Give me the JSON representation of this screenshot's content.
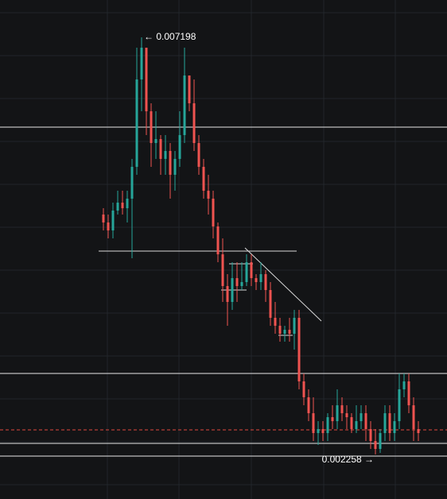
{
  "chart_data": {
    "type": "candlestick",
    "open": [
      0.005099,
      0.005005,
      0.004911,
      0.005146,
      0.00524,
      0.005174,
      0.005287,
      0.005664,
      0.006699,
      0.007075,
      0.006322,
      0.005946,
      0.005993,
      0.005758,
      0.005852,
      0.00557,
      0.005758,
      0.00604,
      0.006746,
      0.006417,
      0.005946,
      0.005664,
      0.005381,
      0.005287,
      0.004958,
      0.004628,
      0.004252,
      0.004064,
      0.004346,
      0.004252,
      0.004299,
      0.004534,
      0.004346,
      0.004299,
      0.004393,
      0.004205,
      0.003876,
      0.003782,
      0.003687,
      0.003734,
      0.003687,
      0.003876,
      0.003123,
      0.002935,
      0.002746,
      0.002511,
      0.002558,
      0.002511,
      0.002699,
      0.002652,
      0.00284,
      0.002746,
      0.002699,
      0.002558,
      0.002652,
      0.002746,
      0.002558,
      0.002417,
      0.002323,
      0.002511,
      0.002746,
      0.002511,
      0.002652,
      0.003029,
      0.003123,
      0.00284,
      0.002558
    ],
    "high": [
      0.005174,
      0.005099,
      0.00524,
      0.005381,
      0.005381,
      0.005381,
      0.005758,
      0.007075,
      0.007198,
      0.007075,
      0.006417,
      0.006322,
      0.00604,
      0.00604,
      0.005946,
      0.005852,
      0.006322,
      0.007075,
      0.006746,
      0.006699,
      0.00604,
      0.005758,
      0.00557,
      0.005381,
      0.005005,
      0.004817,
      0.004393,
      0.004534,
      0.004534,
      0.004534,
      0.004628,
      0.004628,
      0.004393,
      0.004534,
      0.00444,
      0.004299,
      0.004064,
      0.003876,
      0.003782,
      0.003876,
      0.00397,
      0.00397,
      0.003217,
      0.003029,
      0.002935,
      0.002652,
      0.002652,
      0.002746,
      0.00284,
      0.003029,
      0.002935,
      0.00284,
      0.002746,
      0.00284,
      0.00284,
      0.00284,
      0.002652,
      0.002558,
      0.002558,
      0.00284,
      0.00284,
      0.002746,
      0.003217,
      0.003217,
      0.003217,
      0.002935,
      0.002652
    ],
    "low": [
      0.004911,
      0.004817,
      0.004817,
      0.005099,
      0.005099,
      0.005005,
      0.004581,
      0.00557,
      0.006322,
      0.00604,
      0.005664,
      0.005758,
      0.00557,
      0.00557,
      0.005287,
      0.005381,
      0.005664,
      0.005946,
      0.006322,
      0.005852,
      0.00557,
      0.005287,
      0.005099,
      0.004817,
      0.004534,
      0.004064,
      0.003782,
      0.00397,
      0.004064,
      0.004205,
      0.004252,
      0.004252,
      0.004205,
      0.004205,
      0.004064,
      0.003782,
      0.003687,
      0.003593,
      0.003593,
      0.003593,
      0.003499,
      0.003029,
      0.00284,
      0.002652,
      0.002417,
      0.00237,
      0.002417,
      0.002417,
      0.002558,
      0.002558,
      0.002652,
      0.002558,
      0.002511,
      0.002511,
      0.002558,
      0.002417,
      0.002323,
      0.002258,
      0.002276,
      0.002417,
      0.002417,
      0.002417,
      0.002558,
      0.002935,
      0.002746,
      0.002417,
      0.002417
    ],
    "close": [
      0.005005,
      0.004911,
      0.005146,
      0.00524,
      0.005174,
      0.005287,
      0.005664,
      0.006699,
      0.007075,
      0.006322,
      0.005946,
      0.005993,
      0.005758,
      0.005852,
      0.00557,
      0.005758,
      0.00604,
      0.006746,
      0.006417,
      0.005946,
      0.005664,
      0.005381,
      0.005287,
      0.004958,
      0.004628,
      0.004252,
      0.004064,
      0.004346,
      0.004252,
      0.004299,
      0.004534,
      0.004346,
      0.004299,
      0.004393,
      0.004205,
      0.003876,
      0.003782,
      0.003687,
      0.003734,
      0.003687,
      0.003876,
      0.003123,
      0.002935,
      0.002746,
      0.002511,
      0.002558,
      0.002511,
      0.002699,
      0.002652,
      0.00284,
      0.002746,
      0.002699,
      0.002558,
      0.002652,
      0.002746,
      0.002558,
      0.002417,
      0.002323,
      0.002511,
      0.002746,
      0.002511,
      0.002652,
      0.003029,
      0.003123,
      0.00284,
      0.002558,
      0.002511
    ],
    "up_color": "#26a69a",
    "down_color": "#ef5350",
    "ylim": [
      0.00173,
      0.00764
    ],
    "horizontal_lines": [
      0.006134,
      0.003217,
      0.002389,
      0.002238
    ],
    "last_price_line": {
      "value": 0.002549,
      "color": "#e0493e"
    },
    "annotations": [
      "← 0.007198",
      "0.002258 →"
    ]
  }
}
